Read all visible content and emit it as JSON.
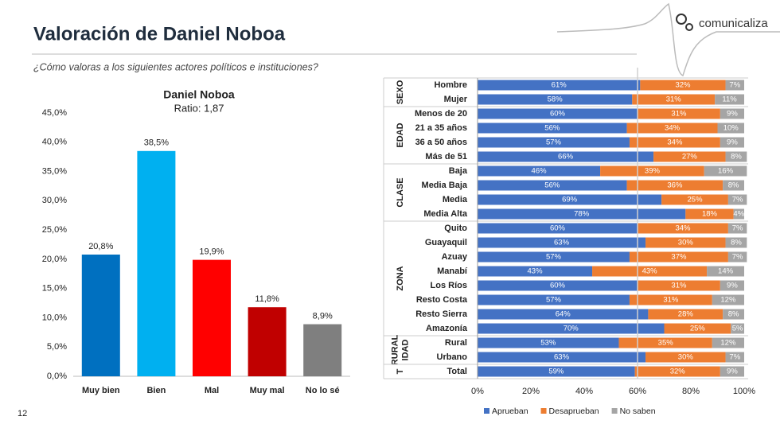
{
  "header": {
    "title": "Valoración de Daniel Noboa",
    "subtitle": "¿Cómo valoras a los siguientes actores políticos e instituciones?",
    "logo": "comunicaliza",
    "page_number": "12"
  },
  "chart_data": [
    {
      "type": "bar",
      "title": "Daniel Noboa",
      "subtitle": "Ratio: 1,87",
      "categories": [
        "Muy bien",
        "Bien",
        "Mal",
        "Muy mal",
        "No lo sé"
      ],
      "values": [
        20.8,
        38.5,
        19.9,
        11.8,
        8.9
      ],
      "value_labels": [
        "20,8%",
        "38,5%",
        "19,9%",
        "11,8%",
        "8,9%"
      ],
      "colors": [
        "#0070c0",
        "#00b0f0",
        "#ff0000",
        "#c00000",
        "#7f7f7f"
      ],
      "ylim": [
        0,
        45
      ],
      "yticks": [
        {
          "value": 0,
          "label": "0,0%"
        },
        {
          "value": 5,
          "label": "5,0%"
        },
        {
          "value": 10,
          "label": "10,0%"
        },
        {
          "value": 15,
          "label": "15,0%"
        },
        {
          "value": 20,
          "label": "20,0%"
        },
        {
          "value": 25,
          "label": "25,0%"
        },
        {
          "value": 30,
          "label": "30,0%"
        },
        {
          "value": 35,
          "label": "35,0%"
        },
        {
          "value": 40,
          "label": "40,0%"
        },
        {
          "value": 45,
          "label": "45,0%"
        }
      ]
    },
    {
      "type": "stackedbar",
      "groups": [
        {
          "label": "SEXO",
          "categories": [
            "Hombre",
            "Mujer"
          ]
        },
        {
          "label": "EDAD",
          "categories": [
            "Menos de 20",
            "21 a 35 años",
            "36 a 50 años",
            "Más de 51"
          ]
        },
        {
          "label": "CLASE",
          "categories": [
            "Baja",
            "Media Baja",
            "Media",
            "Media Alta"
          ]
        },
        {
          "label": "ZONA",
          "categories": [
            "Quito",
            "Guayaquil",
            "Azuay",
            "Manabí",
            "Los Ríos",
            "Resto Costa",
            "Resto Sierra",
            "Amazonía"
          ]
        },
        {
          "label": [
            "RURAL",
            "IDAD"
          ],
          "categories": [
            "Rural",
            "Urbano"
          ]
        },
        {
          "label": "T",
          "categories": [
            "Total"
          ]
        }
      ],
      "series": [
        {
          "name": "Aprueban",
          "color": "#4472c4",
          "values": [
            61,
            58,
            60,
            56,
            57,
            66,
            46,
            56,
            69,
            78,
            60,
            63,
            57,
            43,
            60,
            57,
            64,
            70,
            53,
            63,
            59
          ],
          "value_labels": [
            "61%",
            "58%",
            "60%",
            "56%",
            "57%",
            "66%",
            "46%",
            "56%",
            "69%",
            "78%",
            "60%",
            "63%",
            "57%",
            "43%",
            "60%",
            "57%",
            "64%",
            "70%",
            "53%",
            "63%",
            "59%"
          ]
        },
        {
          "name": "Desaprueban",
          "color": "#ed7d31",
          "values": [
            32,
            31,
            31,
            34,
            34,
            27,
            39,
            36,
            25,
            18,
            34,
            30,
            37,
            43,
            31,
            31,
            28,
            25,
            35,
            30,
            32
          ],
          "value_labels": [
            "32%",
            "31%",
            "31%",
            "34%",
            "34%",
            "27%",
            "39%",
            "36%",
            "25%",
            "18%",
            "34%",
            "30%",
            "37%",
            "43%",
            "31%",
            "31%",
            "28%",
            "25%",
            "35%",
            "30%",
            "32%"
          ]
        },
        {
          "name": "No saben",
          "color": "#a5a5a5",
          "values": [
            7,
            11,
            9,
            10,
            9,
            8,
            16,
            8,
            7,
            4,
            7,
            8,
            7,
            14,
            9,
            12,
            8,
            5,
            12,
            7,
            9
          ],
          "value_labels": [
            "7%",
            "11%",
            "9%",
            "10%",
            "9%",
            "8%",
            "16%",
            "8%",
            "7%",
            "4%",
            "7%",
            "8%",
            "7%",
            "14%",
            "9%",
            "12%",
            "8%",
            "5%",
            "12%",
            "7%",
            "9%"
          ]
        }
      ],
      "xlim": [
        0,
        100
      ],
      "xticks": [
        {
          "value": 0,
          "label": "0%"
        },
        {
          "value": 20,
          "label": "20%"
        },
        {
          "value": 40,
          "label": "40%"
        },
        {
          "value": 60,
          "label": "60%"
        },
        {
          "value": 80,
          "label": "80%"
        },
        {
          "value": 100,
          "label": "100%"
        }
      ],
      "reference_x": 60
    }
  ]
}
